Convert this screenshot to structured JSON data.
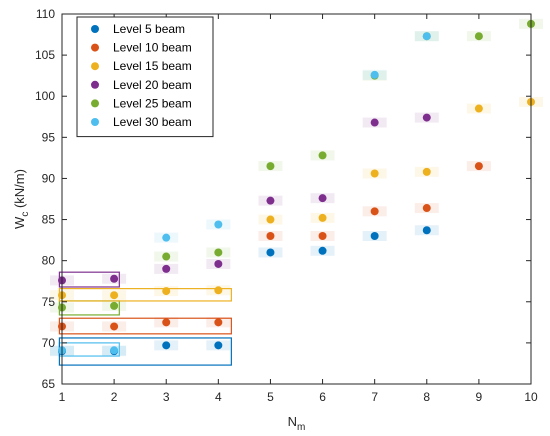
{
  "chart_data": {
    "type": "scatter",
    "xlabel": "N",
    "xlabel_subscript": "m",
    "ylabel": "W",
    "ylabel_subscript": "c",
    "ylabel_unit": " (kN/m)",
    "xlim": [
      1,
      10
    ],
    "ylim": [
      65,
      110
    ],
    "xticks": [
      1,
      2,
      3,
      4,
      5,
      6,
      7,
      8,
      9,
      10
    ],
    "yticks": [
      65,
      70,
      75,
      80,
      85,
      90,
      95,
      100,
      105,
      110
    ],
    "grid": false,
    "legend_position": "top-left",
    "series": [
      {
        "name": "Level 5 beam",
        "color": "#0072BD",
        "x": [
          1,
          2,
          3,
          4,
          5,
          6,
          7,
          8
        ],
        "y": [
          69,
          69,
          69.7,
          69.7,
          81,
          81.2,
          83,
          83.7
        ]
      },
      {
        "name": "Level 10 beam",
        "color": "#D95319",
        "x": [
          1,
          2,
          3,
          4,
          5,
          6,
          7,
          8,
          9
        ],
        "y": [
          72,
          72,
          72.5,
          72.5,
          83,
          83,
          86,
          86.4,
          91.5
        ]
      },
      {
        "name": "Level 15 beam",
        "color": "#EDB120",
        "x": [
          1,
          2,
          3,
          4,
          5,
          6,
          7,
          8,
          9,
          10
        ],
        "y": [
          75.8,
          75.8,
          76.3,
          76.4,
          85,
          85.2,
          90.6,
          90.8,
          98.5,
          99.3
        ]
      },
      {
        "name": "Level 20 beam",
        "color": "#7E2F8E",
        "x": [
          1,
          2,
          3,
          4,
          5,
          6,
          7,
          8
        ],
        "y": [
          77.6,
          77.8,
          79,
          79.6,
          87.3,
          87.6,
          96.8,
          97.4
        ]
      },
      {
        "name": "Level 25 beam",
        "color": "#77AC30",
        "x": [
          1,
          2,
          3,
          4,
          5,
          6,
          7,
          8,
          9,
          10
        ],
        "y": [
          74.3,
          74.5,
          80.5,
          81,
          91.5,
          92.8,
          102.5,
          107.3,
          107.3,
          108.8
        ]
      },
      {
        "name": "Level 30 beam",
        "color": "#4DBEEE",
        "x": [
          1,
          2,
          3,
          4,
          7,
          8
        ],
        "y": [
          69.1,
          69.1,
          82.8,
          84.4,
          102.6,
          107.3
        ]
      }
    ],
    "highlight_boxes": [
      {
        "x": [
          0.95,
          2.1
        ],
        "y": [
          73.4,
          75.1
        ],
        "color": "#77AC30"
      },
      {
        "x": [
          0.95,
          2.1
        ],
        "y": [
          76.8,
          78.6
        ],
        "color": "#7E2F8E"
      },
      {
        "x": [
          0.95,
          4.25
        ],
        "y": [
          75.1,
          76.6
        ],
        "color": "#EDB120"
      },
      {
        "x": [
          0.95,
          4.25
        ],
        "y": [
          71.1,
          73.0
        ],
        "color": "#D95319"
      },
      {
        "x": [
          0.95,
          2.1
        ],
        "y": [
          68.4,
          70.0
        ],
        "color": "#4DBEEE"
      },
      {
        "x": [
          0.95,
          4.25
        ],
        "y": [
          67.3,
          70.6
        ],
        "color": "#0072BD"
      }
    ]
  }
}
